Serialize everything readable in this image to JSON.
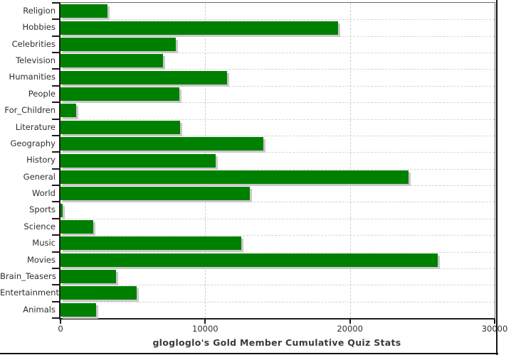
{
  "chart_data": {
    "type": "bar",
    "orientation": "horizontal",
    "title": "glogloglo's Gold Member Cumulative Quiz Stats",
    "categories": [
      "Religion",
      "Hobbies",
      "Celebrities",
      "Television",
      "Humanities",
      "People",
      "For_Children",
      "Literature",
      "Geography",
      "History",
      "General",
      "World",
      "Sports",
      "Science",
      "Music",
      "Movies",
      "Brain_Teasers",
      "Entertainment",
      "Animals"
    ],
    "values": [
      3250,
      19200,
      7950,
      7100,
      11500,
      8200,
      1100,
      8250,
      14000,
      10700,
      24050,
      13100,
      150,
      2280,
      12500,
      26050,
      3850,
      5280,
      2450
    ],
    "xlabel": "",
    "ylabel": "",
    "xlim": [
      0,
      30000
    ],
    "x_ticks": [
      0,
      10000,
      20000,
      30000
    ],
    "x_tick_labels": [
      "0",
      "10000",
      "20000",
      "30000"
    ],
    "bar_color": "#008000",
    "bar_shadow_color": "#c9c9c9",
    "grid": "dashed",
    "gridline_color": "#cccccc",
    "axis_color": "#1c1c1c",
    "legend": "none"
  }
}
